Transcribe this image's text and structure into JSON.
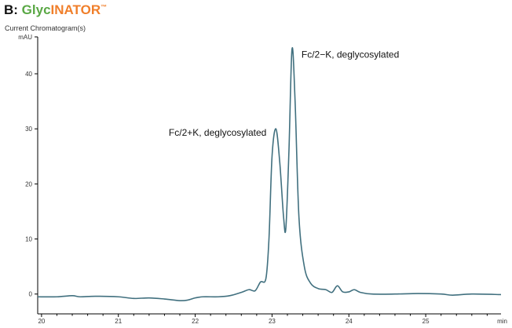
{
  "header": {
    "prefix": "B: ",
    "brand_part1": "Glyc",
    "brand_part2": "INATOR",
    "brand_tm": "™",
    "subtitle": "Current Chromatogram(s)"
  },
  "chart_data": {
    "type": "line",
    "xlabel": "min",
    "ylabel": "mAU",
    "xlim": [
      19.95,
      25.98
    ],
    "ylim": [
      -3.6,
      46.7
    ],
    "xticks": [
      20,
      21,
      22,
      23,
      24,
      25
    ],
    "yticks": [
      0,
      10,
      20,
      30,
      40
    ],
    "grid": false,
    "line_color": "#41707f",
    "series": [
      {
        "x": [
          19.95,
          20.2,
          20.4,
          20.5,
          20.7,
          21.0,
          21.2,
          21.4,
          21.6,
          21.8,
          21.9,
          22.0,
          22.1,
          22.3,
          22.45,
          22.6,
          22.7,
          22.78,
          22.85,
          22.92,
          22.96,
          23.0,
          23.05,
          23.1,
          23.15,
          23.18,
          23.22,
          23.26,
          23.3,
          23.35,
          23.42,
          23.5,
          23.6,
          23.7,
          23.78,
          23.85,
          23.92,
          24.0,
          24.07,
          24.15,
          24.3,
          24.6,
          24.9,
          25.2,
          25.35,
          25.6,
          25.98
        ],
        "y": [
          -0.5,
          -0.5,
          -0.3,
          -0.5,
          -0.4,
          -0.5,
          -0.8,
          -0.7,
          -0.9,
          -1.2,
          -1.1,
          -0.7,
          -0.5,
          -0.5,
          -0.3,
          0.3,
          0.8,
          0.6,
          2.2,
          2.8,
          10,
          25,
          30,
          24,
          14,
          12,
          26,
          44.5,
          35,
          14,
          5,
          2,
          1.0,
          0.8,
          0.3,
          1.5,
          0.4,
          0.4,
          0.8,
          0.3,
          0.0,
          0.0,
          0.1,
          0.0,
          -0.2,
          0.0,
          -0.1
        ]
      }
    ],
    "annotations": [
      {
        "text": "Fc/2+K, deglycosylated",
        "x": 23.05,
        "y": 30
      },
      {
        "text": "Fc/2−K, deglycosylated",
        "x": 23.26,
        "y": 44.5
      }
    ]
  }
}
